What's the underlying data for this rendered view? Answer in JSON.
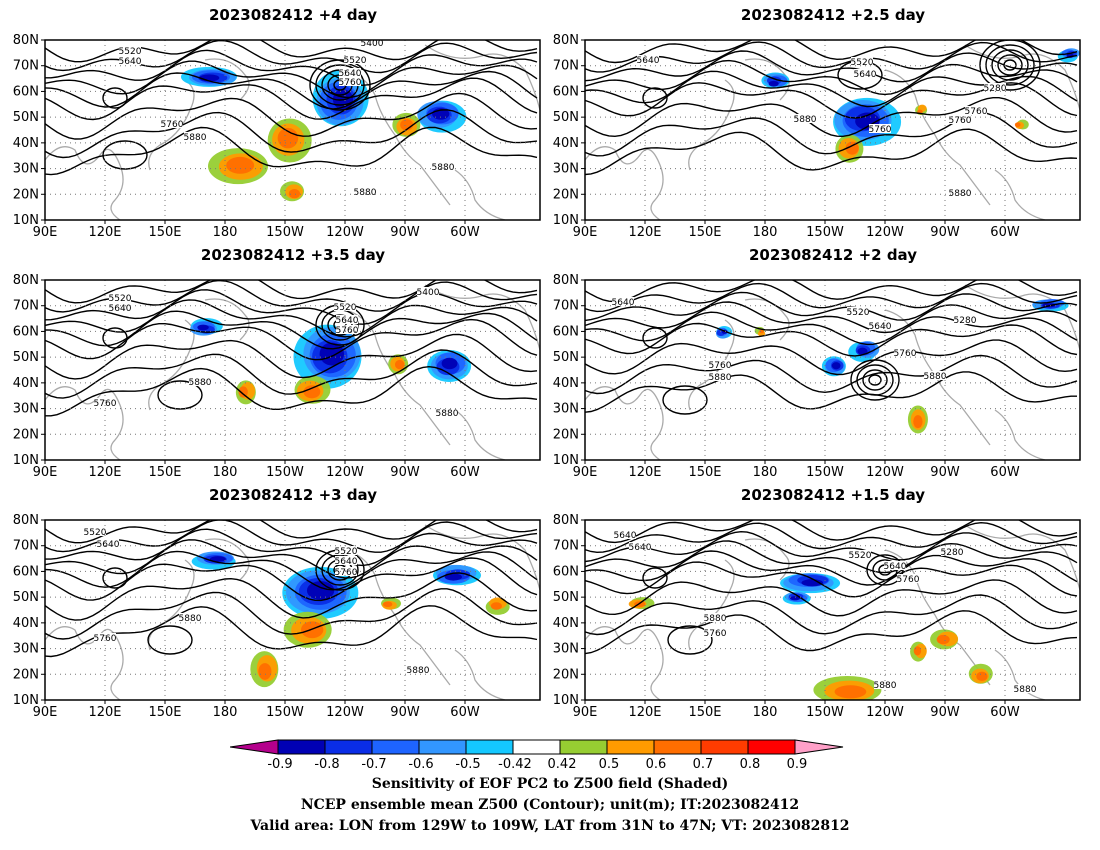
{
  "panels": [
    {
      "title": "2023082412 +4 day"
    },
    {
      "title": "2023082412 +2.5 day"
    },
    {
      "title": "2023082412 +3.5 day"
    },
    {
      "title": "2023082412 +2 day"
    },
    {
      "title": "2023082412 +3 day"
    },
    {
      "title": "2023082412 +1.5 day"
    }
  ],
  "axes": {
    "lat_labels": [
      "80N",
      "70N",
      "60N",
      "50N",
      "40N",
      "30N",
      "20N",
      "10N"
    ],
    "lon_labels": [
      "90E",
      "120E",
      "150E",
      "180",
      "150W",
      "120W",
      "90W",
      "60W"
    ]
  },
  "contour_labels": [
    "5400",
    "5520",
    "5640",
    "5760",
    "5880",
    "5280"
  ],
  "colorbar": {
    "labels": [
      "-0.9",
      "-0.8",
      "-0.7",
      "-0.6",
      "-0.5",
      "-0.42",
      "0.42",
      "0.5",
      "0.6",
      "0.7",
      "0.8",
      "0.9"
    ],
    "colors": [
      "#0000b4",
      "#0a2de6",
      "#1e64ff",
      "#3296ff",
      "#14c8ff",
      "#ffffff",
      "#96cd32",
      "#ff9b00",
      "#ff6e00",
      "#ff3c00",
      "#ff0000"
    ],
    "left_arrow_color": "#b4008c",
    "right_arrow_color": "#ffa0c8"
  },
  "footer": {
    "line1": "Sensitivity of EOF PC2 to Z500 field (Shaded)",
    "line2": "NCEP ensemble mean Z500 (Contour); unit(m); IT:2023082412",
    "line3": "Valid area: LON from 129W to 109W, LAT from 31N to 47N; VT: 2023082812"
  }
}
